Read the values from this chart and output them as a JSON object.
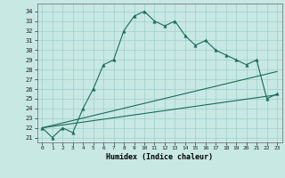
{
  "xlabel": "Humidex (Indice chaleur)",
  "xlim": [
    -0.5,
    23.5
  ],
  "ylim": [
    20.5,
    34.8
  ],
  "yticks": [
    21,
    22,
    23,
    24,
    25,
    26,
    27,
    28,
    29,
    30,
    31,
    32,
    33,
    34
  ],
  "xticks": [
    0,
    1,
    2,
    3,
    4,
    5,
    6,
    7,
    8,
    9,
    10,
    11,
    12,
    13,
    14,
    15,
    16,
    17,
    18,
    19,
    20,
    21,
    22,
    23
  ],
  "bg_color": "#c8e8e4",
  "line_color": "#1a6b5a",
  "grid_color": "#9ecece",
  "line1_x": [
    0,
    1,
    2,
    3,
    4,
    5,
    6,
    7,
    8,
    9,
    10,
    11,
    12,
    13,
    14,
    15,
    16,
    17,
    18,
    19,
    20,
    21,
    22,
    23
  ],
  "line1_y": [
    22.0,
    21.0,
    22.0,
    21.5,
    24.0,
    26.0,
    28.5,
    29.0,
    32.0,
    33.5,
    34.0,
    33.0,
    32.5,
    33.0,
    31.5,
    30.5,
    31.0,
    30.0,
    29.5,
    29.0,
    28.5,
    29.0,
    25.0,
    25.5
  ],
  "line2_x": [
    0,
    23
  ],
  "line2_y": [
    22.0,
    27.8
  ],
  "line3_x": [
    0,
    23
  ],
  "line3_y": [
    22.0,
    25.4
  ]
}
